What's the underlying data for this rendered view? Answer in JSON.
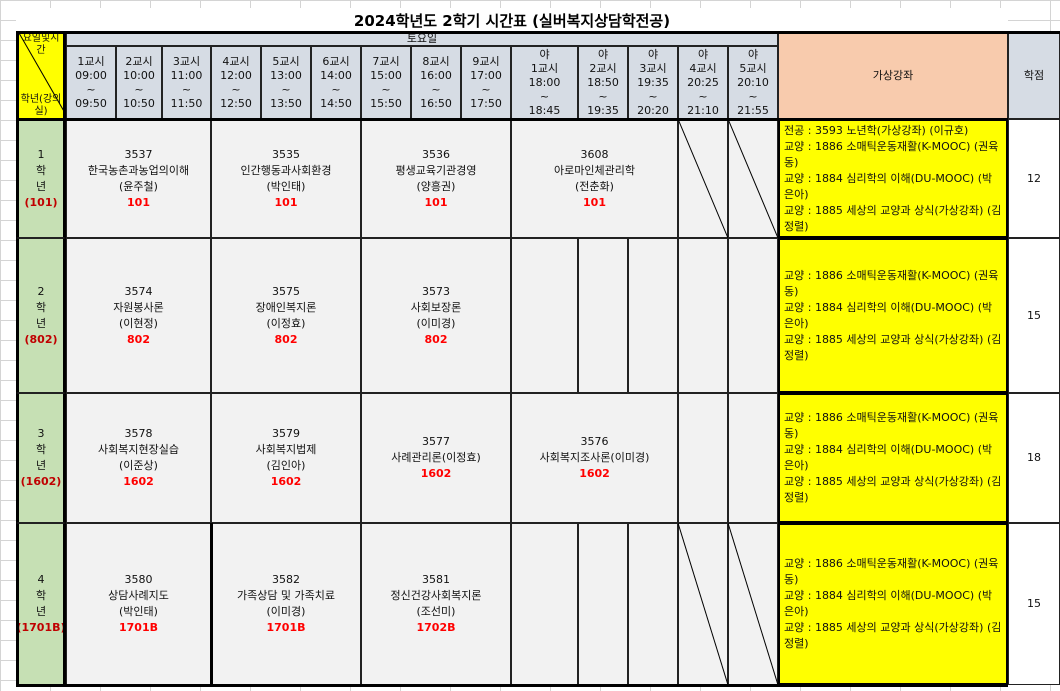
{
  "title": "2024학년도 2학기 시간표 (실버복지상담학전공)",
  "corner": {
    "top": "요일및시간",
    "bottom": "학년(강의실)"
  },
  "day": "토요일",
  "periods": [
    [
      "1교시",
      "09:00",
      "~",
      "09:50"
    ],
    [
      "2교시",
      "10:00",
      "~",
      "10:50"
    ],
    [
      "3교시",
      "11:00",
      "~",
      "11:50"
    ],
    [
      "4교시",
      "12:00",
      "~",
      "12:50"
    ],
    [
      "5교시",
      "13:00",
      "~",
      "13:50"
    ],
    [
      "6교시",
      "14:00",
      "~",
      "14:50"
    ],
    [
      "7교시",
      "15:00",
      "~",
      "15:50"
    ],
    [
      "8교시",
      "16:00",
      "~",
      "16:50"
    ],
    [
      "9교시",
      "17:00",
      "~",
      "17:50"
    ],
    [
      "야",
      "1교시",
      "18:00",
      "~",
      "18:45"
    ],
    [
      "야",
      "2교시",
      "18:50",
      "~",
      "19:35"
    ],
    [
      "야",
      "3교시",
      "19:35",
      "~",
      "20:20"
    ],
    [
      "야",
      "4교시",
      "20:25",
      "~",
      "21:10"
    ],
    [
      "야",
      "5교시",
      "20:10",
      "~",
      "21:55"
    ]
  ],
  "virtual_header": "가상강좌",
  "credits_header": "학점",
  "colors": {
    "header": "#d6dce4",
    "grade": "#c6e0b4",
    "cell": "#f2f2f2",
    "virtual": "#ffff00",
    "virtual_header": "#f8cbad",
    "room": "#ff0000"
  },
  "rows": [
    {
      "grade": [
        "1",
        "학",
        "년"
      ],
      "room": "(101)",
      "credits": "12",
      "courses": [
        {
          "code": "3537",
          "name": "한국농촌과농업의이해",
          "prof": "(윤주철)",
          "room": "101"
        },
        {
          "code": "3535",
          "name": "인간행동과사회환경",
          "prof": "(박인태)",
          "room": "101"
        },
        {
          "code": "3536",
          "name": "평생교육기관경영",
          "prof": "(양흥권)",
          "room": "101"
        },
        {
          "code": "3608",
          "name": "아로마인체관리학",
          "prof": "(전춘화)",
          "room": "101"
        }
      ],
      "virtual": [
        "전공 : 3593 노년학(가상강좌) (이규호)",
        "교양 : 1886 소매틱운동재활(K-MOOC) (권육동)",
        "교양 : 1884 심리학의 이해(DU-MOOC) (박은아)",
        "교양 : 1885 세상의 교양과 상식(가상강좌) (김정렬)"
      ]
    },
    {
      "grade": [
        "2",
        "학",
        "년"
      ],
      "room": "(802)",
      "credits": "15",
      "courses": [
        {
          "code": "3574",
          "name": "자원봉사론",
          "prof": "(이현정)",
          "room": "802"
        },
        {
          "code": "3575",
          "name": "장애인복지론",
          "prof": "(이정효)",
          "room": "802"
        },
        {
          "code": "3573",
          "name": "사회보장론",
          "prof": "(이미경)",
          "room": "802"
        }
      ],
      "virtual": [
        "교양 : 1886 소매틱운동재활(K-MOOC) (권육동)",
        "교양 : 1884 심리학의 이해(DU-MOOC) (박은아)",
        "교양 : 1885 세상의 교양과 상식(가상강좌) (김정렬)"
      ]
    },
    {
      "grade": [
        "3",
        "학",
        "년"
      ],
      "room": "(1602)",
      "credits": "18",
      "courses": [
        {
          "code": "3578",
          "name": "사회복지현장실습",
          "prof": "(이준상)",
          "room": "1602"
        },
        {
          "code": "3579",
          "name": "사회복지법제",
          "prof": "(김인아)",
          "room": "1602"
        },
        {
          "code": "3577",
          "name": "사례관리론(이정효)",
          "prof": "",
          "room": "1602"
        },
        {
          "code": "3576",
          "name": "사회복지조사론(이미경)",
          "prof": "",
          "room": "1602"
        }
      ],
      "virtual": [
        "교양 : 1886 소매틱운동재활(K-MOOC) (권육동)",
        "교양 : 1884 심리학의 이해(DU-MOOC) (박은아)",
        "교양 : 1885 세상의 교양과 상식(가상강좌) (김정렬)"
      ]
    },
    {
      "grade": [
        "4",
        "학",
        "년"
      ],
      "room": "(1701B)",
      "credits": "15",
      "courses": [
        {
          "code": "3580",
          "name": "상담사례지도",
          "prof": "(박인태)",
          "room": "1701B"
        },
        {
          "code": "3582",
          "name": "가족상담 및 가족치료",
          "prof": "(이미경)",
          "room": "1701B"
        },
        {
          "code": "3581",
          "name": "정신건강사회복지론",
          "prof": "(조선미)",
          "room": "1702B"
        }
      ],
      "virtual": [
        "교양 : 1886 소매틱운동재활(K-MOOC) (권육동)",
        "교양 : 1884 심리학의 이해(DU-MOOC) (박은아)",
        "교양 : 1885 세상의 교양과 상식(가상강좌) (김정렬)"
      ]
    }
  ]
}
